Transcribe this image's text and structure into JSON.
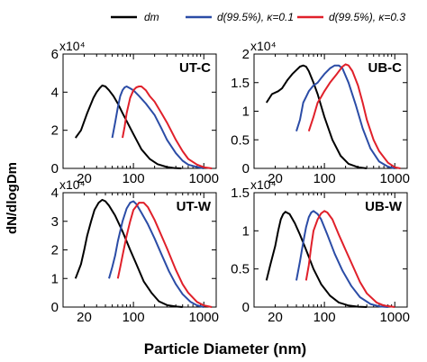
{
  "chart_data": {
    "type": "line",
    "xlabel": "Particle Diameter (nm)",
    "ylabel": "dN/dlogDm",
    "xscale": "log",
    "xlim": [
      10,
      1500
    ],
    "x_tick_labels": [
      "20",
      "100",
      "1000"
    ],
    "legend": {
      "placement": "top",
      "entries": [
        {
          "label": "dm",
          "color": "#000000"
        },
        {
          "label": "d(99.5%), κ=0.1",
          "color": "#2b4ca6"
        },
        {
          "label": "d(99.5%), κ=0.3",
          "color": "#e0202a"
        }
      ]
    },
    "panels": [
      {
        "name": "UT-C",
        "multiplier_label": "x10⁴",
        "ylim": [
          0,
          60000
        ],
        "y_tick_labels": [
          "0",
          "2",
          "4",
          "6"
        ],
        "series": [
          {
            "name": "dm",
            "color": "#000000",
            "x": [
              15,
              18,
              22,
              27,
              30,
              33,
              36,
              40,
              45,
              52,
              60,
              70,
              85,
              100,
              130,
              170,
              220,
              300,
              380,
              480
            ],
            "y": [
              16000,
              20000,
              29000,
              37000,
              40000,
              42000,
              43500,
              43000,
              41000,
              38000,
              34000,
              29000,
              23000,
              18000,
              10000,
              5000,
              2200,
              700,
              200,
              0
            ]
          },
          {
            "name": "d(99.5%), κ=0.1",
            "color": "#2b4ca6",
            "x": [
              50,
              55,
              60,
              65,
              70,
              75,
              80,
              90,
              100,
              120,
              150,
              200,
              250,
              300,
              400,
              500,
              600,
              800,
              1000
            ],
            "y": [
              16000,
              24000,
              32000,
              38000,
              41000,
              42500,
              43000,
              42000,
              41000,
              38000,
              34000,
              28000,
              21000,
              15000,
              8000,
              4000,
              2000,
              700,
              0
            ]
          },
          {
            "name": "d(99.5%), κ=0.3",
            "color": "#e0202a",
            "x": [
              70,
              75,
              80,
              90,
              100,
              110,
              120,
              130,
              150,
              170,
              200,
              250,
              300,
              400,
              500,
              600,
              800,
              1000,
              1300
            ],
            "y": [
              16000,
              22000,
              29000,
              37000,
              41000,
              42500,
              43000,
              43000,
              41000,
              38000,
              35000,
              29000,
              24000,
              15000,
              9000,
              5000,
              2000,
              600,
              0
            ]
          }
        ]
      },
      {
        "name": "UB-C",
        "multiplier_label": "x10⁴",
        "ylim": [
          0,
          20000
        ],
        "y_tick_labels": [
          "0",
          "0.5",
          "1",
          "1.5",
          "2"
        ],
        "series": [
          {
            "name": "dm",
            "color": "#000000",
            "x": [
              15,
              18,
              22,
              25,
              30,
              35,
              40,
              45,
              50,
              55,
              60,
              70,
              80,
              100,
              130,
              170,
              220,
              300,
              400
            ],
            "y": [
              11500,
              13000,
              13500,
              14000,
              15500,
              16500,
              17200,
              17800,
              18000,
              17800,
              17000,
              15000,
              13000,
              9000,
              5000,
              2200,
              800,
              200,
              0
            ]
          },
          {
            "name": "d(99.5%), κ=0.1",
            "color": "#2b4ca6",
            "x": [
              40,
              45,
              50,
              55,
              60,
              70,
              80,
              90,
              100,
              120,
              140,
              160,
              180,
              220,
              280,
              350,
              450,
              600,
              800,
              1000
            ],
            "y": [
              6500,
              8500,
              11500,
              12500,
              13500,
              14500,
              15000,
              15800,
              16500,
              17500,
              18000,
              18000,
              17500,
              15000,
              11000,
              7000,
              3500,
              1200,
              300,
              0
            ]
          },
          {
            "name": "d(99.5%), κ=0.3",
            "color": "#e0202a",
            "x": [
              60,
              70,
              80,
              90,
              100,
              120,
              150,
              180,
              200,
              220,
              250,
              300,
              350,
              400,
              500,
              600,
              800,
              1000,
              1200
            ],
            "y": [
              6500,
              9000,
              11500,
              12500,
              13500,
              15000,
              16500,
              17800,
              18200,
              18000,
              17000,
              14500,
              11500,
              8500,
              5000,
              3000,
              1000,
              200,
              0
            ]
          }
        ]
      },
      {
        "name": "UT-W",
        "multiplier_label": "x10⁴",
        "ylim": [
          0,
          40000
        ],
        "y_tick_labels": [
          "0",
          "1",
          "2",
          "3",
          "4"
        ],
        "series": [
          {
            "name": "dm",
            "color": "#000000",
            "x": [
              15,
              18,
              20,
              22,
              25,
              28,
              32,
              36,
              40,
              45,
              55,
              70,
              90,
              110,
              140,
              180,
              230,
              300,
              400,
              500
            ],
            "y": [
              10000,
              15000,
              20000,
              25000,
              30000,
              34000,
              36500,
              37500,
              37000,
              35500,
              32000,
              26500,
              20000,
              15000,
              9000,
              5000,
              2000,
              700,
              200,
              0
            ]
          },
          {
            "name": "d(99.5%), κ=0.1",
            "color": "#2b4ca6",
            "x": [
              45,
              50,
              55,
              60,
              70,
              80,
              90,
              100,
              110,
              130,
              160,
              200,
              250,
              320,
              400,
              500,
              650,
              800,
              1000
            ],
            "y": [
              10000,
              14000,
              18000,
              23000,
              30000,
              34500,
              36500,
              37000,
              36000,
              33000,
              29000,
              24000,
              18500,
              12500,
              8000,
              4500,
              1800,
              600,
              0
            ]
          },
          {
            "name": "d(99.5%), κ=0.3",
            "color": "#e0202a",
            "x": [
              60,
              65,
              70,
              80,
              90,
              100,
              120,
              140,
              160,
              200,
              250,
              300,
              400,
              500,
              600,
              800,
              1000,
              1300
            ],
            "y": [
              10000,
              14000,
              18000,
              25000,
              30000,
              34000,
              36500,
              36500,
              35000,
              30500,
              25000,
              20500,
              13000,
              8000,
              5000,
              1800,
              600,
              0
            ]
          }
        ]
      },
      {
        "name": "UB-W",
        "multiplier_label": "x10⁴",
        "ylim": [
          0,
          15000
        ],
        "y_tick_labels": [
          "0",
          "0.5",
          "1",
          "1.5"
        ],
        "series": [
          {
            "name": "dm",
            "color": "#000000",
            "x": [
              15,
              17,
              20,
              22,
              24,
              26,
              28,
              32,
              38,
              45,
              55,
              70,
              90,
              120,
              160,
              220,
              300,
              400
            ],
            "y": [
              3500,
              5500,
              8000,
              10000,
              11500,
              12200,
              12500,
              12200,
              11000,
              9500,
              7500,
              5000,
              3000,
              1500,
              600,
              200,
              50,
              0
            ]
          },
          {
            "name": "d(99.5%), κ=0.1",
            "color": "#2b4ca6",
            "x": [
              40,
              45,
              50,
              55,
              60,
              65,
              70,
              80,
              90,
              110,
              140,
              180,
              240,
              320,
              450,
              600,
              800
            ],
            "y": [
              3500,
              6000,
              8500,
              10500,
              11800,
              12400,
              12600,
              12200,
              11500,
              9500,
              7000,
              4800,
              2800,
              1300,
              400,
              100,
              0
            ]
          },
          {
            "name": "d(99.5%), κ=0.3",
            "color": "#e0202a",
            "x": [
              55,
              60,
              65,
              70,
              80,
              90,
              100,
              110,
              130,
              160,
              200,
              250,
              320,
              400,
              550,
              700,
              1000
            ],
            "y": [
              3500,
              5500,
              8000,
              10000,
              11500,
              12300,
              12600,
              12400,
              11500,
              9500,
              7500,
              5500,
              3300,
              1800,
              600,
              200,
              0
            ]
          }
        ]
      }
    ]
  }
}
